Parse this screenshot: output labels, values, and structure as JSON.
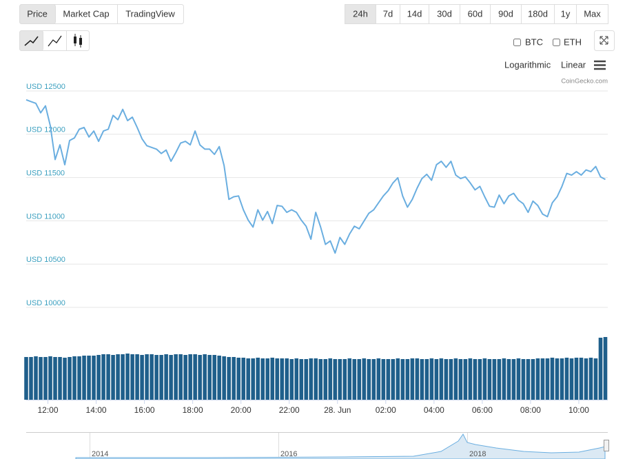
{
  "ui": {
    "tabs": [
      "Price",
      "Market Cap",
      "TradingView"
    ],
    "ranges": [
      "24h",
      "7d",
      "14d",
      "30d",
      "60d",
      "90d",
      "180d",
      "1y",
      "Max"
    ],
    "checkboxes": [
      "BTC",
      "ETH"
    ],
    "scale_options": [
      "Logarithmic",
      "Linear"
    ],
    "credit": "CoinGecko.com",
    "navigator_labels": [
      "2014",
      "2016",
      "2018"
    ]
  },
  "chart_data": {
    "type": "line",
    "x": [
      11.1,
      11.3,
      11.5,
      11.7,
      11.9,
      12.1,
      12.3,
      12.5,
      12.7,
      12.9,
      13.1,
      13.3,
      13.5,
      13.7,
      13.9,
      14.1,
      14.3,
      14.5,
      14.7,
      14.9,
      15.1,
      15.3,
      15.5,
      15.7,
      15.9,
      16.1,
      16.3,
      16.5,
      16.7,
      16.9,
      17.1,
      17.3,
      17.5,
      17.7,
      17.9,
      18.1,
      18.3,
      18.5,
      18.7,
      18.9,
      19.1,
      19.3,
      19.5,
      19.7,
      19.9,
      20.1,
      20.3,
      20.5,
      20.7,
      20.9,
      21.1,
      21.3,
      21.5,
      21.7,
      21.9,
      22.1,
      22.3,
      22.5,
      22.7,
      22.9,
      23.1,
      23.3,
      23.5,
      23.7,
      23.9,
      24.1,
      24.3,
      24.5,
      24.7,
      24.9,
      25.1,
      25.3,
      25.5,
      25.7,
      25.9,
      26.1,
      26.3,
      26.5,
      26.7,
      26.9,
      27.1,
      27.3,
      27.5,
      27.7,
      27.9,
      28.1,
      28.3,
      28.5,
      28.7,
      28.9,
      29.1,
      29.3,
      29.5,
      29.7,
      29.9,
      30.1,
      30.3,
      30.5,
      30.7,
      30.9,
      31.1,
      31.3,
      31.5,
      31.7,
      31.9,
      32.1,
      32.3,
      32.5,
      32.7,
      32.9,
      33.1,
      33.3,
      33.5,
      33.7,
      33.9,
      34.1,
      34.3,
      34.5,
      34.7,
      34.9,
      35.1
    ],
    "series": [
      {
        "type": "line",
        "color": "#6aaee0",
        "values": [
          12350,
          12330,
          12310,
          12200,
          12280,
          12050,
          11660,
          11830,
          11600,
          11880,
          11910,
          12010,
          12030,
          11920,
          11990,
          11870,
          11990,
          12010,
          12170,
          12120,
          12240,
          12110,
          12150,
          12030,
          11900,
          11820,
          11800,
          11780,
          11730,
          11770,
          11640,
          11740,
          11850,
          11870,
          11830,
          11990,
          11830,
          11780,
          11780,
          11720,
          11810,
          11590,
          11200,
          11230,
          11240,
          11080,
          10960,
          10880,
          11080,
          10960,
          11060,
          10920,
          11130,
          11120,
          11050,
          11080,
          11050,
          10960,
          10890,
          10740,
          11050,
          10880,
          10680,
          10720,
          10580,
          10760,
          10680,
          10800,
          10890,
          10860,
          10950,
          11040,
          11080,
          11160,
          11240,
          11300,
          11390,
          11450,
          11240,
          11110,
          11200,
          11330,
          11440,
          11490,
          11420,
          11600,
          11640,
          11570,
          11640,
          11480,
          11440,
          11460,
          11390,
          11310,
          11350,
          11230,
          11120,
          11110,
          11250,
          11150,
          11240,
          11270,
          11190,
          11150,
          11050,
          11180,
          11130,
          11030,
          11000,
          11160,
          11230,
          11350,
          11500,
          11480,
          11520,
          11480,
          11540,
          11520,
          11580,
          11460,
          11430
        ]
      },
      {
        "type": "bar",
        "axis": "y2",
        "color": "#1f5f8b",
        "values": [
          62,
          62,
          63,
          62,
          62,
          63,
          62,
          62,
          61,
          62,
          63,
          63,
          64,
          64,
          64,
          65,
          66,
          66,
          65,
          66,
          66,
          67,
          66,
          66,
          65,
          66,
          66,
          65,
          65,
          66,
          65,
          66,
          66,
          65,
          66,
          66,
          65,
          66,
          65,
          65,
          64,
          63,
          62,
          62,
          61,
          61,
          60,
          60,
          61,
          60,
          60,
          61,
          60,
          60,
          60,
          59,
          60,
          59,
          59,
          60,
          60,
          59,
          59,
          60,
          59,
          59,
          59,
          60,
          59,
          59,
          60,
          59,
          59,
          60,
          59,
          59,
          59,
          60,
          59,
          59,
          60,
          60,
          59,
          59,
          60,
          59,
          60,
          59,
          59,
          60,
          59,
          59,
          60,
          59,
          59,
          60,
          59,
          59,
          59,
          60,
          59,
          59,
          60,
          59,
          59,
          59,
          60,
          60,
          60,
          61,
          60,
          60,
          61,
          60,
          61,
          61,
          60,
          61,
          60,
          90,
          91
        ]
      }
    ],
    "xlim": [
      11.1,
      35.2
    ],
    "xticks": [
      {
        "value": 12,
        "label": "12:00"
      },
      {
        "value": 14,
        "label": "14:00"
      },
      {
        "value": 16,
        "label": "16:00"
      },
      {
        "value": 18,
        "label": "18:00"
      },
      {
        "value": 20,
        "label": "20:00"
      },
      {
        "value": 22,
        "label": "22:00"
      },
      {
        "value": 24,
        "label": "28. Jun"
      },
      {
        "value": 26,
        "label": "02:00"
      },
      {
        "value": 28,
        "label": "04:00"
      },
      {
        "value": 30,
        "label": "06:00"
      },
      {
        "value": 32,
        "label": "08:00"
      },
      {
        "value": 34,
        "label": "10:00"
      }
    ],
    "ylim": [
      10000,
      12500
    ],
    "yticks": [
      {
        "value": 12500,
        "label": "USD 12500"
      },
      {
        "value": 12000,
        "label": "USD 12000"
      },
      {
        "value": 11500,
        "label": "USD 11500"
      },
      {
        "value": 11000,
        "label": "USD 11000"
      },
      {
        "value": 10500,
        "label": "USD 10500"
      },
      {
        "value": 10000,
        "label": "USD 10000"
      }
    ],
    "y2lim": [
      0,
      100
    ],
    "grid": true
  }
}
